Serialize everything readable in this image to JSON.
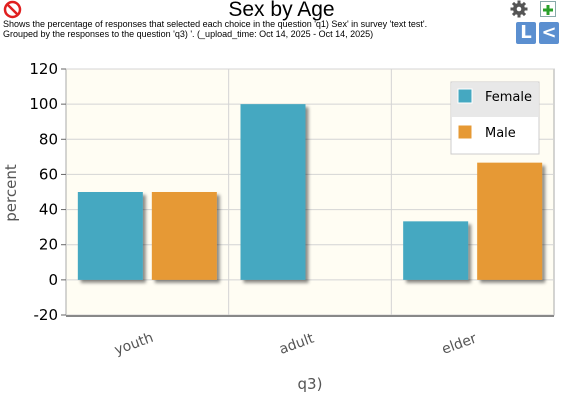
{
  "header": {
    "title": "Sex by Age",
    "subtitle": "Shows the percentage of responses that selected each choice in the question 'q1) Sex' in survey 'text test'.\nGrouped by the responses to the question 'q3) '. (_upload_time: Oct 14, 2025 - Oct 14, 2025)",
    "btn_l": "L",
    "btn_lt": "<"
  },
  "icons": {
    "ban": "ban-icon",
    "gear": "gear-icon",
    "add": "add-icon"
  },
  "colors": {
    "female": "#45a8c1",
    "male": "#e69934",
    "plot_bg": "#fffdf3",
    "button_blue": "#5b8fd0"
  },
  "chart_data": {
    "type": "bar",
    "categories": [
      "youth",
      "adult",
      "elder"
    ],
    "series": [
      {
        "name": "Female",
        "values": [
          50,
          100,
          33.3
        ]
      },
      {
        "name": "Male",
        "values": [
          50,
          0,
          66.7
        ]
      }
    ],
    "title": "Sex by Age",
    "xlabel": "q3)",
    "ylabel": "percent",
    "ylim": [
      -20,
      120
    ],
    "yticks": [
      "120",
      "100",
      "80",
      "60",
      "40",
      "20",
      "0",
      "-20"
    ],
    "grid": true,
    "legend": "top-right"
  }
}
